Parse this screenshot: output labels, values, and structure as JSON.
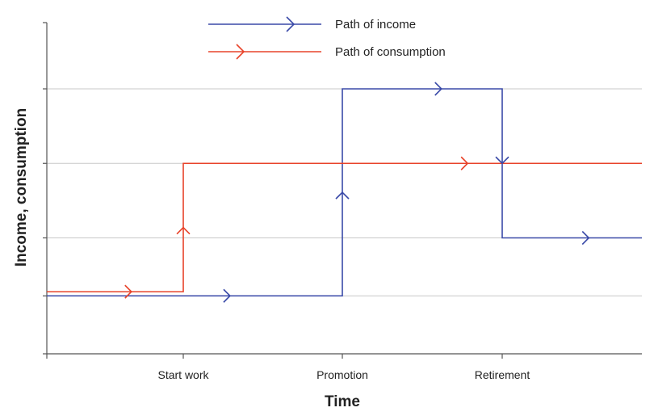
{
  "chart_data": {
    "type": "line",
    "xlabel": "Time",
    "ylabel": "Income, consumption",
    "x_tick_labels": [
      "Start work",
      "Promotion",
      "Retirement"
    ],
    "xlim": [
      0,
      4
    ],
    "ylim": [
      0,
      4
    ],
    "y_gridlines": [
      0.7,
      1.4,
      2.3,
      3.2
    ],
    "grid": true,
    "legend_position": "top-center",
    "series": [
      {
        "name": "Path of income",
        "color": "#3a4aa8",
        "points": [
          [
            0,
            0.7
          ],
          [
            2,
            0.7
          ],
          [
            2,
            3.2
          ],
          [
            3,
            3.2
          ],
          [
            3,
            1.4
          ],
          [
            4,
            1.4
          ]
        ]
      },
      {
        "name": "Path of consumption",
        "color": "#e8432a",
        "points": [
          [
            0,
            0.75
          ],
          [
            1,
            0.75
          ],
          [
            1,
            2.3
          ],
          [
            4,
            2.3
          ]
        ]
      }
    ]
  }
}
